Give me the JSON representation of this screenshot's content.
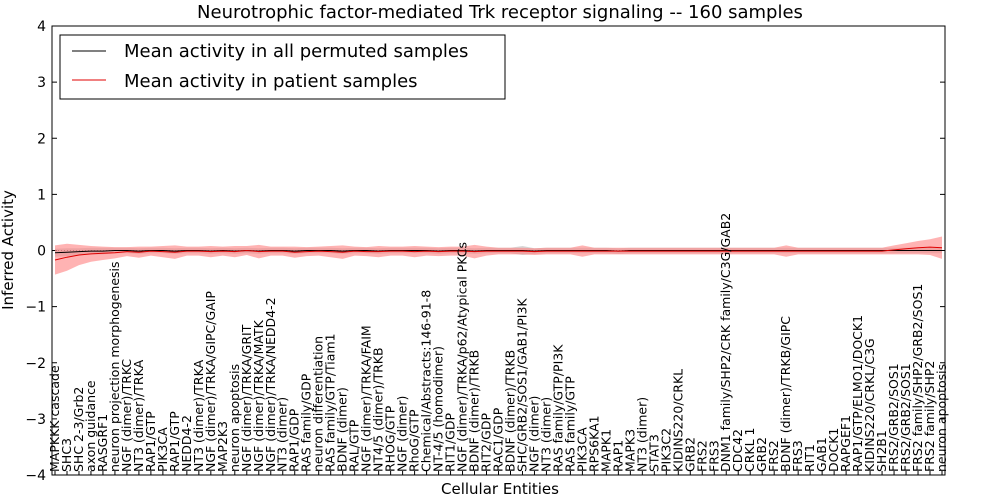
{
  "chart_data": {
    "type": "line",
    "title": "Neurotrophic factor-mediated Trk receptor signaling -- 160 samples",
    "xlabel": "Cellular Entities",
    "ylabel": "Inferred Activity",
    "ylim": [
      -4,
      4
    ],
    "yticks": [
      "−4",
      "−3",
      "−2",
      "−1",
      "0",
      "1",
      "2",
      "3",
      "4"
    ],
    "legend_position": "top-left",
    "categories": [
      "MAPKKK cascade",
      "SHC3",
      "SHC 2-3/Grb2",
      "axon guidance",
      "RASGRF1",
      "neuron projection morphogenesis",
      "NGF (dimer)/TRKC",
      "NT3 (dimer)/TRKA",
      "RAP1/GTP",
      "PIK3CA",
      "RAP1/GTP",
      "NEDD4-2",
      "NT3 (dimer)/TRKA",
      "NGF (dimer)/TRKA/GIPC/GAIP",
      "MAP2K3",
      "neuron apoptosis",
      "NGF (dimer)/TRKA/GRIT",
      "NGF (dimer)/TRKA/MATK",
      "NGF (dimer)/TRKA/NEDD4-2",
      "NT3 (dimer)",
      "RAP1/GDP",
      "RAS family/GDP",
      "neuron differentiation",
      "RAS family/GTP/Tiam1",
      "BDNF (dimer)",
      "RAL/GTP",
      "NGF (dimer)/TRKA/FAIM",
      "NT4/5 (dimer)/TRKB",
      "RHOG/GTP",
      "NGF (dimer)",
      "RhoG/GTP",
      "Chemical/Abstracts:146-91-8",
      "NT-4/5 (homodimer)",
      "RIT1/GDP",
      "NGF (dimer)/TRKA/p62/Atypical PKCs",
      "BDNF (dimer)/TRKB",
      "RIT2/GDP",
      "RAC1/GDP",
      "BDNF (dimer)/TRKB",
      "SHC/GRB2/SOS1/GAB1/PI3K",
      "NGF (dimer)",
      "NT3 (dimer)",
      "RAS family/GTP/PI3K",
      "RAS family/GTP",
      "PIK3CA",
      "RPS6KA1",
      "MAPK1",
      "RAP1",
      "MAPK3",
      "NT3 (dimer)",
      "STAT3",
      "PIK3C2",
      "KIDINS220/CRKL",
      "GRB2",
      "FRS2",
      "FRS3",
      "DNM1 family/SHP2/CRK family/C3G/GAB2",
      "CDC42",
      "CRKL 1",
      "GRB2",
      "FRS2",
      "BDNF (dimer)/TRKB/GIPC",
      "FRS3",
      "RIT1",
      "GAB1",
      "DOCK1",
      "RAPGEF1",
      "RAP1/GTP/ELMO1/DOCK1",
      "KIDINS220/CRKL/C3G",
      "SH2B1",
      "FRS2/GRB2/SOS1",
      "FRS2/GRB2/SOS1",
      "FRS2 family/SHP2/GRB2/SOS1",
      "FRS2 family/SHP2",
      "neuron apoptosis"
    ],
    "series": [
      {
        "name": "Mean activity in all permuted samples",
        "color": "#000000",
        "band_color": "#b0b0b0",
        "values": [
          -0.04,
          -0.03,
          -0.02,
          -0.01,
          -0.01,
          0.0,
          0.0,
          -0.01,
          0.0,
          0.0,
          -0.01,
          0.0,
          0.0,
          -0.01,
          0.0,
          -0.01,
          0.0,
          -0.01,
          0.0,
          0.0,
          -0.01,
          0.0,
          0.0,
          0.0,
          -0.01,
          0.0,
          0.0,
          -0.01,
          0.0,
          0.0,
          0.0,
          0.0,
          -0.01,
          0.0,
          0.0,
          -0.01,
          0.0,
          0.0,
          0.0,
          0.0,
          -0.01,
          0.0,
          0.0,
          0.0,
          0.0,
          0.0,
          0.0,
          -0.01,
          0.0,
          0.0,
          0.0,
          0.0,
          0.0,
          0.0,
          0.0,
          0.0,
          0.0,
          0.0,
          0.0,
          0.0,
          0.0,
          0.0,
          0.0,
          0.0,
          0.0,
          0.0,
          0.0,
          0.0,
          0.0,
          0.0,
          0.0,
          0.0,
          0.0,
          0.0,
          0.0
        ],
        "band": [
          0.07,
          0.07,
          0.06,
          0.06,
          0.06,
          0.05,
          0.05,
          0.05,
          0.05,
          0.05,
          0.05,
          0.05,
          0.05,
          0.05,
          0.05,
          0.05,
          0.05,
          0.05,
          0.05,
          0.05,
          0.05,
          0.05,
          0.05,
          0.05,
          0.05,
          0.05,
          0.05,
          0.05,
          0.05,
          0.05,
          0.05,
          0.05,
          0.05,
          0.05,
          0.05,
          0.05,
          0.05,
          0.05,
          0.05,
          0.08,
          0.05,
          0.05,
          0.05,
          0.05,
          0.05,
          0.05,
          0.05,
          0.05,
          0.05,
          0.05,
          0.05,
          0.05,
          0.05,
          0.05,
          0.05,
          0.05,
          0.05,
          0.05,
          0.05,
          0.05,
          0.05,
          0.05,
          0.05,
          0.05,
          0.05,
          0.05,
          0.05,
          0.05,
          0.05,
          0.05,
          0.05,
          0.05,
          0.05,
          0.05,
          0.05
        ]
      },
      {
        "name": "Mean activity in patient samples",
        "color": "#e00000",
        "band_color": "#ff8080",
        "values": [
          -0.17,
          -0.12,
          -0.08,
          -0.06,
          -0.05,
          -0.04,
          -0.02,
          -0.03,
          -0.01,
          -0.02,
          -0.03,
          -0.01,
          -0.01,
          -0.02,
          -0.01,
          -0.02,
          0.0,
          -0.02,
          -0.01,
          -0.01,
          -0.03,
          -0.02,
          -0.01,
          -0.02,
          -0.03,
          -0.01,
          -0.02,
          -0.02,
          -0.01,
          -0.01,
          -0.02,
          -0.01,
          -0.02,
          -0.01,
          -0.01,
          -0.02,
          -0.01,
          -0.01,
          -0.01,
          -0.01,
          -0.02,
          -0.01,
          -0.01,
          -0.01,
          -0.01,
          -0.01,
          -0.01,
          -0.01,
          -0.01,
          -0.01,
          -0.01,
          -0.01,
          -0.01,
          -0.01,
          -0.01,
          -0.01,
          -0.01,
          -0.01,
          -0.01,
          -0.01,
          -0.01,
          -0.01,
          -0.01,
          -0.01,
          -0.01,
          -0.01,
          -0.01,
          -0.01,
          -0.01,
          -0.01,
          0.01,
          0.03,
          0.05,
          0.06,
          0.05
        ],
        "band": [
          0.26,
          0.24,
          0.18,
          0.14,
          0.12,
          0.1,
          0.08,
          0.1,
          0.08,
          0.1,
          0.12,
          0.08,
          0.08,
          0.1,
          0.08,
          0.1,
          0.08,
          0.12,
          0.08,
          0.08,
          0.1,
          0.08,
          0.08,
          0.1,
          0.12,
          0.08,
          0.08,
          0.1,
          0.08,
          0.08,
          0.1,
          0.08,
          0.08,
          0.08,
          0.08,
          0.12,
          0.08,
          0.06,
          0.06,
          0.06,
          0.06,
          0.06,
          0.06,
          0.06,
          0.1,
          0.06,
          0.06,
          0.06,
          0.06,
          0.06,
          0.06,
          0.06,
          0.06,
          0.06,
          0.06,
          0.06,
          0.06,
          0.06,
          0.06,
          0.06,
          0.06,
          0.1,
          0.06,
          0.06,
          0.06,
          0.06,
          0.06,
          0.06,
          0.06,
          0.06,
          0.08,
          0.1,
          0.12,
          0.14,
          0.2
        ]
      }
    ]
  }
}
